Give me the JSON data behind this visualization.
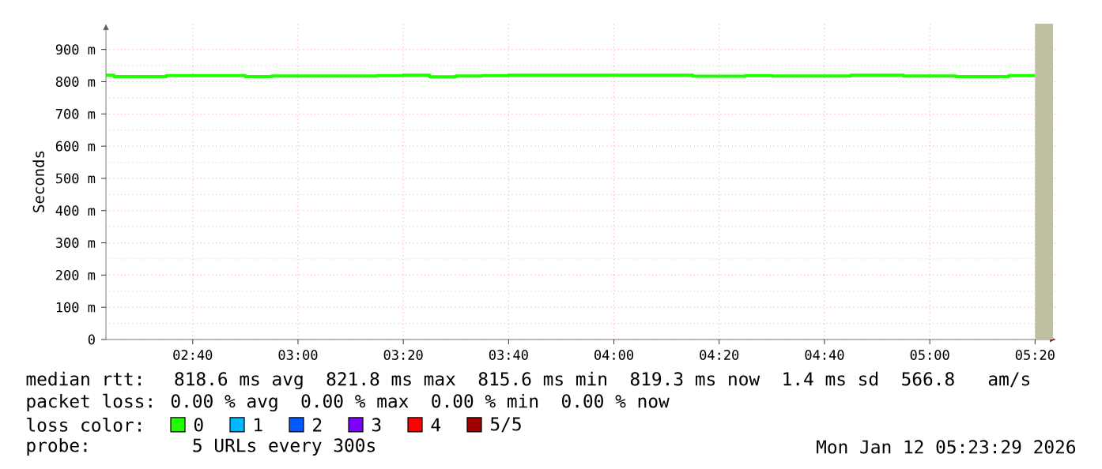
{
  "chart_data": {
    "type": "step",
    "ylabel": "Seconds",
    "xlim": [
      2.392,
      5.4
    ],
    "xticks": [
      {
        "value": 2.6667,
        "label": "02:40"
      },
      {
        "value": 3.0,
        "label": "03:00"
      },
      {
        "value": 3.3333,
        "label": "03:20"
      },
      {
        "value": 3.6667,
        "label": "03:40"
      },
      {
        "value": 4.0,
        "label": "04:00"
      },
      {
        "value": 4.3333,
        "label": "04:20"
      },
      {
        "value": 4.6667,
        "label": "04:40"
      },
      {
        "value": 5.0,
        "label": "05:00"
      },
      {
        "value": 5.3333,
        "label": "05:20"
      }
    ],
    "ylim": [
      0,
      980
    ],
    "yticks": [
      0,
      {
        "value": 100,
        "label": "100 m"
      },
      {
        "value": 200,
        "label": "200 m"
      },
      {
        "value": 300,
        "label": "300 m"
      },
      {
        "value": 400,
        "label": "400 m"
      },
      {
        "value": 500,
        "label": "500 m"
      },
      {
        "value": 600,
        "label": "600 m"
      },
      {
        "value": 700,
        "label": "700 m"
      },
      {
        "value": 800,
        "label": "800 m"
      },
      {
        "value": 900,
        "label": "900 m"
      }
    ],
    "grid": true,
    "marker": "none",
    "line_style": "solid",
    "legend": "bottom",
    "legend_title": "loss color:",
    "series": [
      {
        "name": "0",
        "color": "#20ff00",
        "x": [
          2.392,
          2.417,
          2.583,
          2.833,
          2.917,
          3.083,
          3.25,
          3.333,
          3.417,
          3.5,
          3.583,
          3.667,
          3.75,
          3.833,
          3.917,
          4.25,
          4.417,
          4.5,
          4.75,
          4.917,
          5.083,
          5.25,
          5.333
        ],
        "values": [
          820,
          816,
          819,
          816,
          818,
          818,
          819,
          820,
          815,
          818,
          819,
          820,
          820,
          820,
          820,
          817,
          819,
          818,
          820,
          818,
          816,
          819,
          819
        ]
      },
      {
        "name": "1",
        "color": "#00b8ff"
      },
      {
        "name": "2",
        "color": "#0059ff"
      },
      {
        "name": "3",
        "color": "#7e00ff"
      },
      {
        "name": "4",
        "color": "#ff0000"
      },
      {
        "name": "5/5",
        "color": "#a10000"
      }
    ],
    "bands": [
      {
        "axis": "x",
        "from": 5.3333,
        "to": 5.39,
        "color": "#c0c0a0"
      }
    ],
    "annotations": [
      "median rtt:  818.6 ms avg  821.8 ms max  815.6 ms min  819.3 ms now  1.4 ms sd  566.8   am/s",
      "packet loss: 0.00 % avg  0.00 % max  0.00 % min  0.00 % now",
      "probe:       5 URLs every 300s",
      "Mon Jan 12 05:23:29 2026"
    ]
  }
}
